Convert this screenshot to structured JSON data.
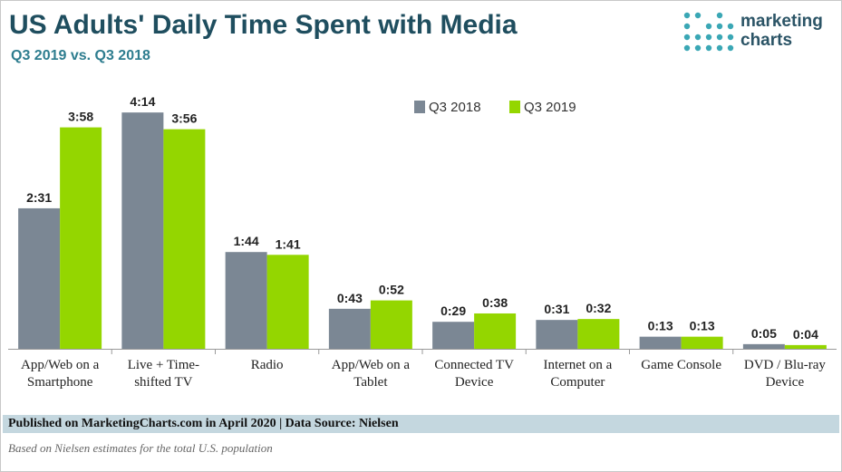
{
  "header": {
    "title": "US Adults' Daily Time Spent with Media",
    "subtitle": "Q3 2019 vs. Q3 2018"
  },
  "logo": {
    "line1": "marketing",
    "line2": "charts"
  },
  "footer": {
    "published": "Published on MarketingCharts.com in April 2020 | Data Source: Nielsen",
    "note": "Based on Nielsen estimates for the total U.S. population"
  },
  "colors": {
    "q3_2018": "#7b8794",
    "q3_2019": "#94d600",
    "title": "#1f4e5f",
    "logo_dots": "#3aa7b5"
  },
  "chart_data": {
    "type": "bar",
    "categories": [
      [
        "App/Web on a",
        "Smartphone"
      ],
      [
        "Live + Time-",
        "shifted TV"
      ],
      [
        "Radio"
      ],
      [
        "App/Web on a",
        "Tablet"
      ],
      [
        "Connected TV",
        "Device"
      ],
      [
        "Internet on a",
        "Computer"
      ],
      [
        "Game Console"
      ],
      [
        "DVD / Blu-ray",
        "Device"
      ]
    ],
    "series": [
      {
        "name": "Q3 2018",
        "color": "#7b8794",
        "values": [
          151,
          254,
          104,
          43,
          29,
          31,
          13,
          5
        ],
        "labels": [
          "2:31",
          "4:14",
          "1:44",
          "0:43",
          "0:29",
          "0:31",
          "0:13",
          "0:05"
        ]
      },
      {
        "name": "Q3 2019",
        "color": "#94d600",
        "values": [
          238,
          236,
          101,
          52,
          38,
          32,
          13,
          4
        ],
        "labels": [
          "3:58",
          "3:56",
          "1:41",
          "0:52",
          "0:38",
          "0:32",
          "0:13",
          "0:04"
        ]
      }
    ],
    "ylabel": "",
    "ylim": [
      0,
      260
    ],
    "unit": "minutes (h:mm)",
    "legend": "top-right",
    "grid": false
  }
}
